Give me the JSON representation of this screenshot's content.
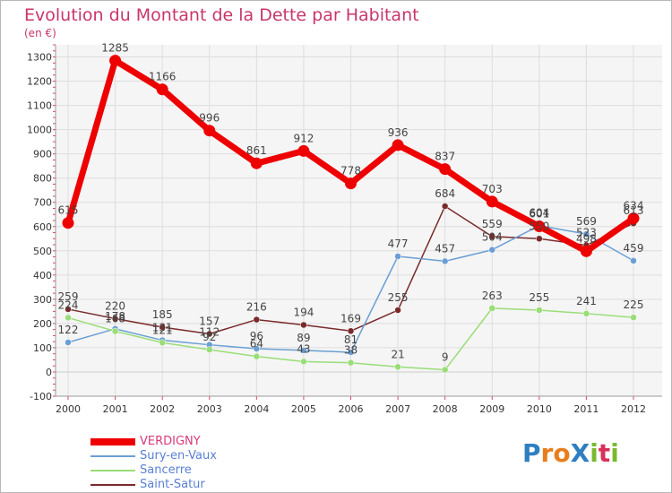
{
  "title": "Evolution du Montant de la Dette par Habitant",
  "unit_label": "(en €)",
  "logo_text": "ProXiti",
  "logo_colors": [
    "#2e7fc1",
    "#e87d1e",
    "#e87d1e",
    "#2e7fc1",
    "#7ab92f",
    "#d92f5a",
    "#7ab92f"
  ],
  "chart_data": {
    "type": "line",
    "title": "Evolution du Montant de la Dette par Habitant",
    "ylabel": "(en €)",
    "xlabel": "",
    "ylim": [
      -100,
      1350
    ],
    "yticks": [
      -100,
      0,
      100,
      200,
      300,
      400,
      500,
      600,
      700,
      800,
      900,
      1000,
      1100,
      1200,
      1300
    ],
    "x": [
      "2000",
      "2001",
      "2002",
      "2003",
      "2004",
      "2005",
      "2006",
      "2007",
      "2008",
      "2009",
      "2010",
      "2011",
      "2012"
    ],
    "series": [
      {
        "name": "VERDIGNY",
        "color": "#ee0000",
        "labelColor": "#444444",
        "values": [
          615,
          1285,
          1166,
          996,
          861,
          912,
          778,
          936,
          837,
          703,
          601,
          498,
          634
        ],
        "labels": [
          "615",
          "1285",
          "1166",
          "996",
          "861",
          "912",
          "778",
          "936",
          "837",
          "703",
          "601",
          "498",
          "634"
        ]
      },
      {
        "name": "Sury-en-Vaux",
        "color": "#6a9fd4",
        "labelColor": "#444444",
        "values": [
          122,
          178,
          131,
          112,
          96,
          89,
          81,
          477,
          457,
          504,
          604,
          569,
          459
        ],
        "labels": [
          "122",
          "178",
          "131",
          "112",
          "96",
          "89",
          "81",
          "477",
          "457",
          "504",
          "604",
          "569",
          "459"
        ]
      },
      {
        "name": "Sancerre",
        "color": "#99dd77",
        "labelColor": "#444444",
        "values": [
          224,
          168,
          121,
          92,
          64,
          43,
          38,
          21,
          9,
          263,
          255,
          241,
          225
        ],
        "labels": [
          "224",
          "168",
          "121",
          "92",
          "64",
          "43",
          "38",
          "21",
          "9",
          "263",
          "255",
          "241",
          "225"
        ]
      },
      {
        "name": "Saint-Satur",
        "color": "#7a2a2a",
        "labelColor": "#444444",
        "values": [
          259,
          220,
          185,
          157,
          216,
          194,
          169,
          255,
          684,
          559,
          550,
          523,
          613
        ],
        "labels": [
          "259",
          "220",
          "185",
          "157",
          "216",
          "194",
          "169",
          "255",
          "684",
          "559",
          "550",
          "523",
          "613"
        ]
      }
    ],
    "grid": true,
    "legend": "bottom-left"
  }
}
